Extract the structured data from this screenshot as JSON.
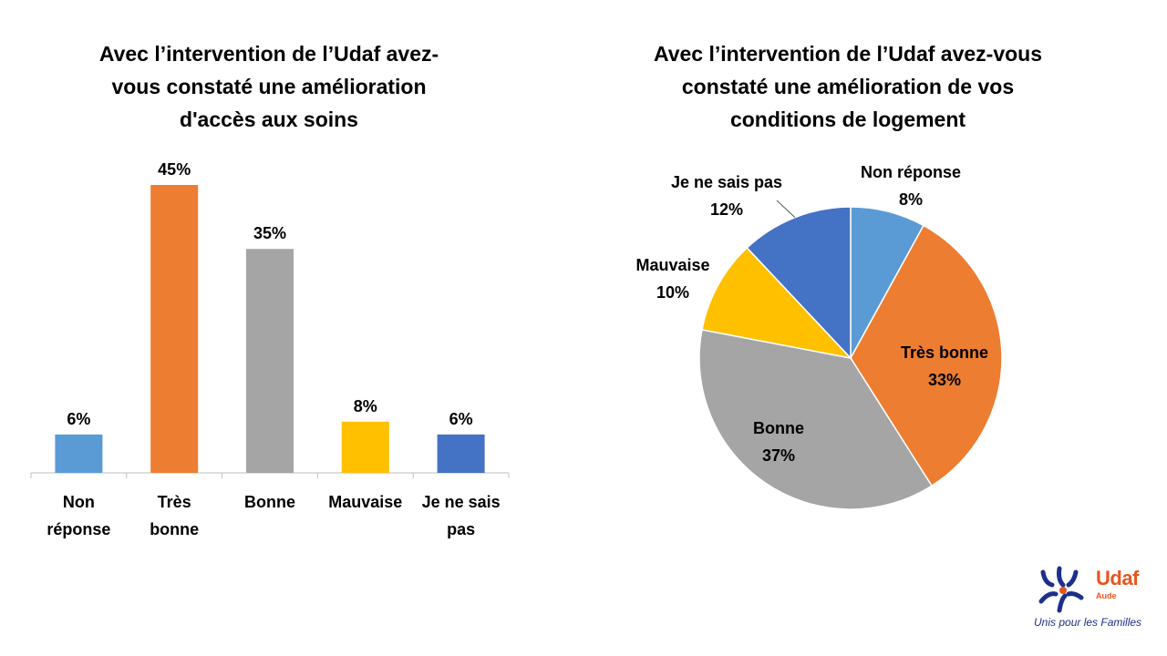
{
  "chart_data": [
    {
      "type": "bar",
      "title": "Avec l’intervention de l’Udaf avez-vous constaté une amélioration d'accès aux soins",
      "title_lines": [
        "Avec l’intervention de l’Udaf avez-",
        "vous constaté une amélioration",
        "d'accès aux soins"
      ],
      "categories": [
        [
          "Non",
          "réponse"
        ],
        [
          "Très",
          "bonne"
        ],
        [
          "Bonne"
        ],
        [
          "Mauvaise"
        ],
        [
          "Je ne sais",
          "pas"
        ]
      ],
      "values": [
        6,
        45,
        35,
        8,
        6
      ],
      "data_labels": [
        "6%",
        "45%",
        "35%",
        "8%",
        "6%"
      ],
      "colors": [
        "#5b9bd5",
        "#ed7d31",
        "#a5a5a5",
        "#ffc000",
        "#4472c4"
      ],
      "ylim": [
        0,
        50
      ],
      "grid": false,
      "legend": "none"
    },
    {
      "type": "pie",
      "title": "Avec l’intervention de l’Udaf avez-vous constaté une amélioration de vos conditions de logement",
      "title_lines": [
        "Avec l’intervention de l’Udaf avez-vous",
        "constaté une amélioration de vos",
        "conditions de logement"
      ],
      "categories": [
        "Non réponse",
        "Très bonne",
        "Bonne",
        "Mauvaise",
        "Je ne sais pas"
      ],
      "values": [
        8,
        33,
        37,
        10,
        12
      ],
      "data_labels": [
        "8%",
        "33%",
        "37%",
        "10%",
        "12%"
      ],
      "colors": [
        "#5b9bd5",
        "#ed7d31",
        "#a5a5a5",
        "#ffc000",
        "#4472c4"
      ],
      "legend": "none"
    }
  ],
  "logo": {
    "word": "Udaf",
    "sub": "Aude",
    "tagline": "Unis pour les Familles",
    "orange": "#e8551f",
    "blue": "#1d2f8a"
  }
}
